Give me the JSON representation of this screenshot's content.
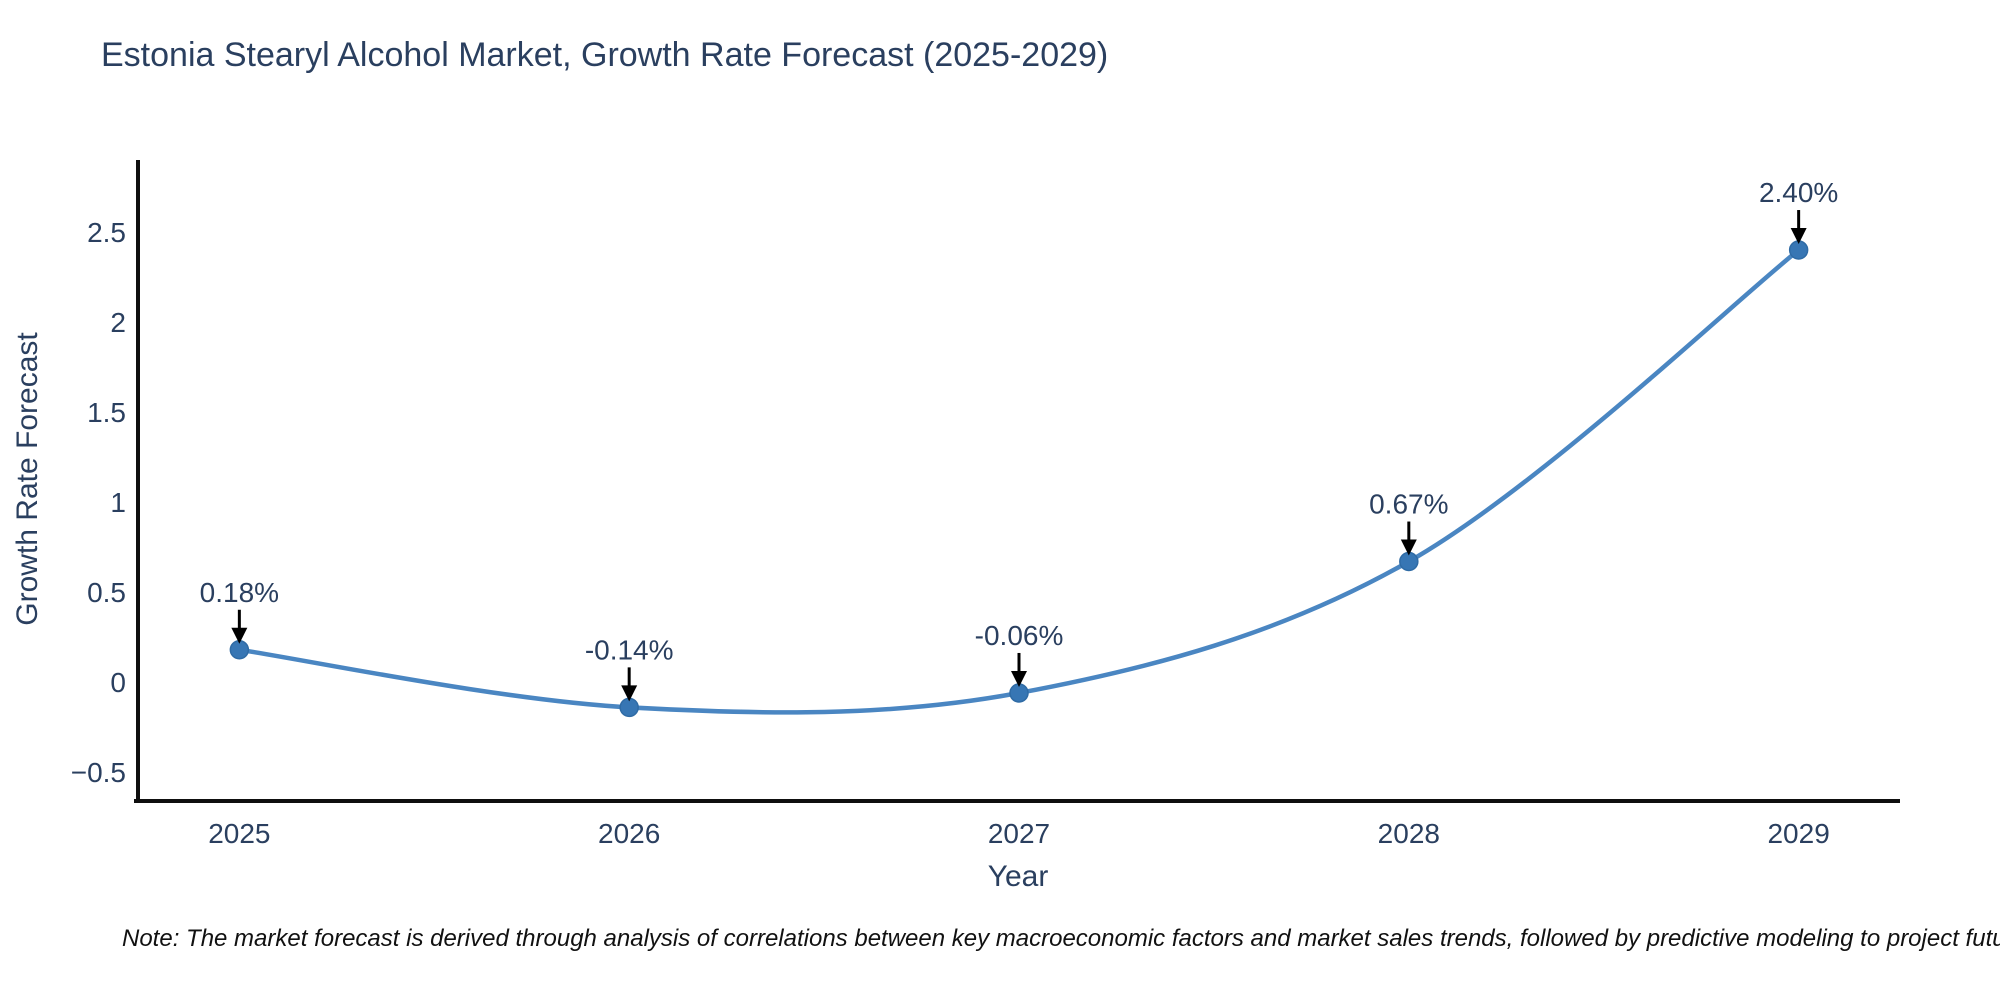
{
  "title": "Estonia Stearyl Alcohol Market, Growth Rate Forecast (2025-2029)",
  "note": "Note: The market forecast is derived through analysis of correlations between key macroeconomic factors and market sales trends, followed by predictive modeling to project future sales.",
  "chart_data": {
    "type": "line",
    "title": "Estonia Stearyl Alcohol Market, Growth Rate Forecast (2025-2029)",
    "xlabel": "Year",
    "ylabel": "Growth Rate Forecast",
    "x": [
      2025,
      2026,
      2027,
      2028,
      2029
    ],
    "values": [
      0.18,
      -0.14,
      -0.06,
      0.67,
      2.4
    ],
    "point_labels": [
      "0.18%",
      "-0.14%",
      "-0.06%",
      "0.67%",
      "2.40%"
    ],
    "x_ticks": [
      2025,
      2026,
      2027,
      2028,
      2029
    ],
    "y_ticks": [
      -0.5,
      0,
      0.5,
      1,
      1.5,
      2,
      2.5
    ],
    "xlim": [
      2024.74,
      2029.26
    ],
    "ylim": [
      -0.66,
      2.9
    ],
    "line_shape": "spline",
    "grid": false,
    "legend": "none",
    "colors": {
      "line": "#4a86c2",
      "marker": "#3776b4",
      "marker_edge": "#2f6ba5",
      "axis": "#0f0f0f",
      "text": "#2a3f5f",
      "arrow": "#000000",
      "background": "#ffffff"
    }
  }
}
